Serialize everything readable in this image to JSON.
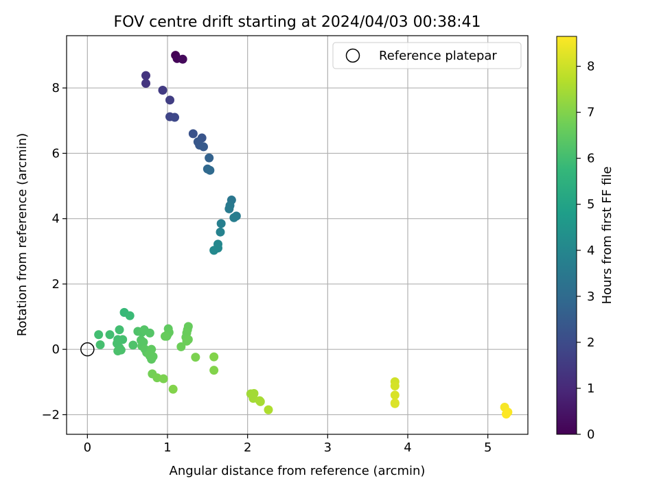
{
  "chart_data": {
    "type": "scatter",
    "title": "FOV centre drift starting at 2024/04/03 00:38:41",
    "xlabel": "Angular distance from reference (arcmin)",
    "ylabel": "Rotation from reference (arcmin)",
    "xlim": [
      -0.26,
      5.5
    ],
    "ylim": [
      -2.6,
      9.6
    ],
    "x_ticks": [
      0,
      1,
      2,
      3,
      4,
      5
    ],
    "x_tick_labels": [
      "0",
      "1",
      "2",
      "3",
      "4",
      "5"
    ],
    "y_ticks": [
      -2,
      0,
      2,
      4,
      6,
      8
    ],
    "y_tick_labels": [
      "−2",
      "0",
      "2",
      "4",
      "6",
      "8"
    ],
    "grid": true,
    "legend": {
      "placement": "top-right",
      "entries": [
        "Reference platepar"
      ]
    },
    "reference": {
      "x": 0,
      "y": 0
    },
    "colorbar": {
      "label": "Hours from first FF file",
      "range": [
        0,
        8.65
      ],
      "ticks": [
        0,
        1,
        2,
        3,
        4,
        5,
        6,
        7,
        8
      ],
      "tick_labels": [
        "0",
        "1",
        "2",
        "3",
        "4",
        "5",
        "6",
        "7",
        "8"
      ],
      "colormap": "viridis",
      "stops": [
        "#440154",
        "#482878",
        "#3e4989",
        "#31688e",
        "#26828e",
        "#1f9e89",
        "#35b779",
        "#6ece58",
        "#b5de2b",
        "#fde725"
      ]
    },
    "points": [
      [
        1.1,
        9.0,
        0.0
      ],
      [
        1.12,
        8.9,
        0.1
      ],
      [
        1.19,
        8.88,
        0.2
      ],
      [
        0.73,
        8.38,
        1.3
      ],
      [
        0.73,
        8.14,
        1.35
      ],
      [
        0.94,
        7.93,
        1.5
      ],
      [
        1.03,
        7.63,
        1.6
      ],
      [
        1.03,
        7.12,
        1.8
      ],
      [
        1.09,
        7.1,
        1.9
      ],
      [
        1.32,
        6.6,
        2.2
      ],
      [
        1.43,
        6.47,
        2.3
      ],
      [
        1.38,
        6.35,
        2.35
      ],
      [
        1.4,
        6.25,
        2.4
      ],
      [
        1.45,
        6.2,
        2.45
      ],
      [
        1.52,
        5.86,
        2.7
      ],
      [
        1.5,
        5.52,
        2.9
      ],
      [
        1.53,
        5.48,
        2.95
      ],
      [
        1.8,
        4.57,
        3.4
      ],
      [
        1.78,
        4.4,
        3.5
      ],
      [
        1.77,
        4.3,
        3.55
      ],
      [
        1.86,
        4.08,
        3.6
      ],
      [
        1.83,
        4.03,
        3.65
      ],
      [
        1.67,
        3.85,
        3.75
      ],
      [
        1.66,
        3.59,
        3.85
      ],
      [
        1.63,
        3.22,
        4.0
      ],
      [
        1.63,
        3.1,
        4.05
      ],
      [
        1.58,
        3.03,
        4.1
      ],
      [
        0.46,
        1.13,
        5.8
      ],
      [
        0.53,
        1.03,
        5.85
      ],
      [
        0.14,
        0.45,
        6.0
      ],
      [
        0.28,
        0.45,
        6.0
      ],
      [
        0.4,
        0.6,
        6.0
      ],
      [
        0.16,
        0.14,
        6.05
      ],
      [
        0.38,
        0.3,
        6.0
      ],
      [
        0.44,
        0.3,
        6.05
      ],
      [
        0.37,
        0.18,
        6.1
      ],
      [
        0.4,
        0.05,
        6.1
      ],
      [
        0.42,
        -0.02,
        6.15
      ],
      [
        0.38,
        -0.05,
        6.15
      ],
      [
        0.57,
        0.13,
        6.2
      ],
      [
        0.63,
        0.55,
        6.2
      ],
      [
        0.68,
        0.52,
        6.25
      ],
      [
        0.71,
        0.6,
        6.3
      ],
      [
        0.78,
        0.5,
        6.3
      ],
      [
        0.67,
        0.28,
        6.3
      ],
      [
        0.7,
        0.22,
        6.35
      ],
      [
        0.68,
        0.1,
        6.35
      ],
      [
        0.72,
        0.0,
        6.4
      ],
      [
        0.74,
        -0.1,
        6.4
      ],
      [
        0.78,
        -0.2,
        6.45
      ],
      [
        0.8,
        -0.3,
        6.45
      ],
      [
        0.82,
        -0.22,
        6.5
      ],
      [
        0.8,
        0.0,
        6.5
      ],
      [
        0.77,
        -0.15,
        6.5
      ],
      [
        1.01,
        0.63,
        6.5
      ],
      [
        1.02,
        0.52,
        6.55
      ],
      [
        0.99,
        0.4,
        6.55
      ],
      [
        1.0,
        0.45,
        6.55
      ],
      [
        0.97,
        0.4,
        6.6
      ],
      [
        1.26,
        0.7,
        6.6
      ],
      [
        1.25,
        0.6,
        6.6
      ],
      [
        1.24,
        0.5,
        6.65
      ],
      [
        1.23,
        0.37,
        6.65
      ],
      [
        1.26,
        0.3,
        6.7
      ],
      [
        1.24,
        0.25,
        6.7
      ],
      [
        1.17,
        0.08,
        6.7
      ],
      [
        0.81,
        -0.75,
        6.8
      ],
      [
        0.87,
        -0.87,
        6.85
      ],
      [
        0.95,
        -0.9,
        6.9
      ],
      [
        1.07,
        -1.22,
        7.0
      ],
      [
        1.35,
        -0.24,
        6.9
      ],
      [
        1.58,
        -0.23,
        7.0
      ],
      [
        1.58,
        -0.64,
        7.0
      ],
      [
        2.04,
        -1.36,
        7.4
      ],
      [
        2.08,
        -1.35,
        7.45
      ],
      [
        2.07,
        -1.5,
        7.45
      ],
      [
        2.16,
        -1.6,
        7.5
      ],
      [
        2.15,
        -1.57,
        7.5
      ],
      [
        2.26,
        -1.85,
        7.6
      ],
      [
        3.84,
        -0.99,
        8.05
      ],
      [
        3.84,
        -1.12,
        8.1
      ],
      [
        3.84,
        -1.4,
        8.15
      ],
      [
        3.84,
        -1.64,
        8.2
      ],
      [
        3.84,
        -1.66,
        8.2
      ],
      [
        5.21,
        -1.77,
        8.55
      ],
      [
        5.25,
        -1.92,
        8.6
      ],
      [
        5.23,
        -1.98,
        8.65
      ]
    ]
  }
}
